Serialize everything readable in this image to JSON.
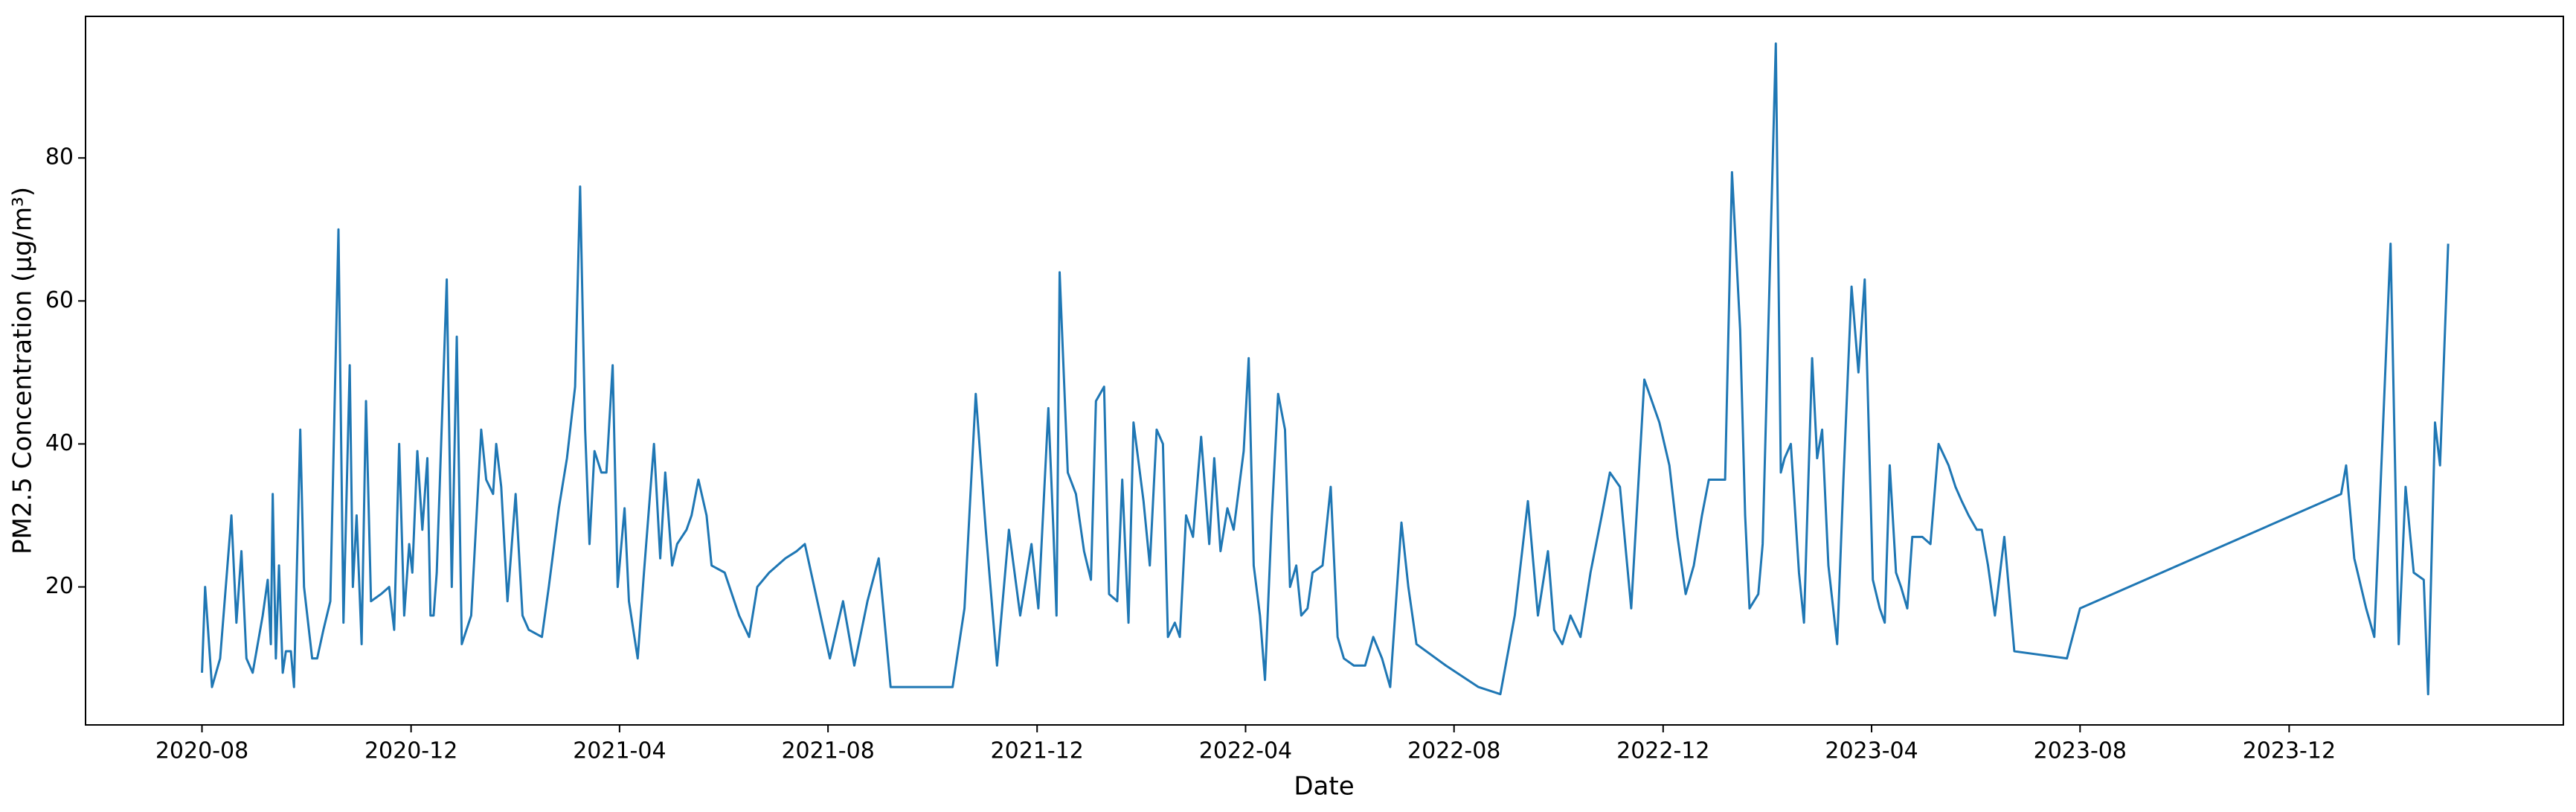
{
  "chart_data": {
    "type": "line",
    "xlabel": "Date",
    "ylabel": "PM2.5 Concentration (µg/m³)",
    "color": "#1f77b4",
    "grid": false,
    "xlim": [
      2020.397,
      2024.355
    ],
    "ylim": [
      0.7,
      99.8
    ],
    "yticks": [
      20,
      40,
      60,
      80
    ],
    "xticks": [
      {
        "value": 2020.583,
        "label": "2020-08"
      },
      {
        "value": 2020.917,
        "label": "2020-12"
      },
      {
        "value": 2021.25,
        "label": "2021-04"
      },
      {
        "value": 2021.583,
        "label": "2021-08"
      },
      {
        "value": 2021.917,
        "label": "2021-12"
      },
      {
        "value": 2022.25,
        "label": "2022-04"
      },
      {
        "value": 2022.583,
        "label": "2022-08"
      },
      {
        "value": 2022.917,
        "label": "2022-12"
      },
      {
        "value": 2023.25,
        "label": "2023-04"
      },
      {
        "value": 2023.583,
        "label": "2023-08"
      },
      {
        "value": 2023.917,
        "label": "2023-12"
      }
    ],
    "x": [
      2020.583,
      2020.588,
      2020.599,
      2020.612,
      2020.63,
      2020.638,
      2020.646,
      2020.654,
      2020.664,
      2020.68,
      2020.688,
      2020.693,
      2020.696,
      2020.701,
      2020.706,
      2020.712,
      2020.717,
      2020.725,
      2020.73,
      2020.74,
      2020.746,
      2020.759,
      2020.767,
      2020.777,
      2020.788,
      2020.801,
      2020.809,
      2020.819,
      2020.824,
      2020.83,
      2020.838,
      2020.845,
      2020.853,
      2020.869,
      2020.882,
      2020.89,
      2020.898,
      2020.906,
      2020.914,
      2020.919,
      2020.927,
      2020.935,
      2020.943,
      2020.948,
      2020.953,
      2020.958,
      2020.974,
      2020.982,
      2020.99,
      2020.998,
      2021.013,
      2021.029,
      2021.037,
      2021.048,
      2021.053,
      2021.061,
      2021.071,
      2021.084,
      2021.095,
      2021.105,
      2021.126,
      2021.137,
      2021.153,
      2021.166,
      2021.179,
      2021.187,
      2021.195,
      2021.202,
      2021.21,
      2021.221,
      2021.229,
      2021.239,
      2021.247,
      2021.258,
      2021.265,
      2021.279,
      2021.289,
      2021.305,
      2021.315,
      2021.323,
      2021.334,
      2021.342,
      2021.357,
      2021.365,
      2021.376,
      2021.389,
      2021.397,
      2021.418,
      2021.441,
      2021.457,
      2021.47,
      2021.489,
      2021.515,
      2021.533,
      2021.546,
      2021.586,
      2021.607,
      2021.625,
      2021.646,
      2021.664,
      2021.683,
      2021.782,
      2021.801,
      2021.819,
      2021.835,
      2021.853,
      2021.872,
      2021.89,
      2021.908,
      2021.919,
      2021.935,
      2021.943,
      2021.948,
      2021.953,
      2021.966,
      2021.979,
      2021.992,
      2022.003,
      2022.011,
      2022.024,
      2022.032,
      2022.045,
      2022.053,
      2022.063,
      2022.071,
      2022.087,
      2022.097,
      2022.108,
      2022.118,
      2022.126,
      2022.137,
      2022.145,
      2022.155,
      2022.166,
      2022.179,
      2022.192,
      2022.2,
      2022.21,
      2022.221,
      2022.231,
      2022.247,
      2022.255,
      2022.263,
      2022.273,
      2022.281,
      2022.292,
      2022.302,
      2022.313,
      2022.321,
      2022.331,
      2022.339,
      2022.349,
      2022.357,
      2022.373,
      2022.386,
      2022.397,
      2022.407,
      2022.423,
      2022.441,
      2022.454,
      2022.468,
      2022.481,
      2022.499,
      2022.51,
      2022.523,
      2022.57,
      2022.622,
      2022.657,
      2022.68,
      2022.701,
      2022.717,
      2022.733,
      2022.743,
      2022.756,
      2022.769,
      2022.785,
      2022.801,
      2022.819,
      2022.832,
      2022.848,
      2022.866,
      2022.887,
      2022.911,
      2022.927,
      2022.94,
      2022.953,
      2022.966,
      2022.979,
      2022.99,
      2023.008,
      2023.016,
      2023.027,
      2023.04,
      2023.048,
      2023.055,
      2023.069,
      2023.076,
      2023.097,
      2023.105,
      2023.111,
      2023.121,
      2023.134,
      2023.142,
      2023.155,
      2023.163,
      2023.171,
      2023.181,
      2023.195,
      2023.205,
      2023.218,
      2023.229,
      2023.239,
      2023.252,
      2023.263,
      2023.271,
      2023.279,
      2023.289,
      2023.297,
      2023.307,
      2023.315,
      2023.331,
      2023.344,
      2023.357,
      2023.373,
      2023.384,
      2023.394,
      2023.405,
      2023.418,
      2023.426,
      2023.436,
      2023.447,
      2023.462,
      2023.478,
      2023.562,
      2023.583,
      2024.0,
      2024.008,
      2024.021,
      2024.04,
      2024.053,
      2024.079,
      2024.092,
      2024.103,
      2024.116,
      2024.132,
      2024.139,
      2024.15,
      2024.158,
      2024.171
    ],
    "values": [
      8,
      20,
      6,
      10,
      30,
      15,
      25,
      10,
      8,
      16,
      21,
      12,
      33,
      10,
      23,
      8,
      11,
      11,
      6,
      42,
      20,
      10,
      10,
      14,
      18,
      70,
      15,
      51,
      20,
      30,
      12,
      46,
      18,
      19,
      20,
      14,
      40,
      16,
      26,
      22,
      39,
      28,
      38,
      16,
      16,
      22,
      63,
      20,
      55,
      12,
      16,
      42,
      35,
      33,
      40,
      34,
      18,
      33,
      16,
      14,
      13,
      20,
      31,
      38,
      48,
      76,
      42,
      26,
      39,
      36,
      36,
      51,
      20,
      31,
      18,
      10,
      22,
      40,
      24,
      36,
      23,
      26,
      28,
      30,
      35,
      30,
      23,
      22,
      16,
      13,
      20,
      22,
      24,
      25,
      26,
      10,
      18,
      9,
      18,
      24,
      6,
      6,
      17,
      47,
      28,
      9,
      28,
      16,
      26,
      17,
      45,
      28,
      16,
      64,
      36,
      33,
      25,
      21,
      46,
      48,
      19,
      18,
      35,
      15,
      43,
      32,
      23,
      42,
      40,
      13,
      15,
      13,
      30,
      27,
      41,
      26,
      38,
      25,
      31,
      28,
      39,
      52,
      23,
      16,
      7,
      30,
      47,
      42,
      20,
      23,
      16,
      17,
      22,
      23,
      34,
      13,
      10,
      9,
      9,
      13,
      10,
      6,
      29,
      20,
      12,
      9,
      6,
      5,
      16,
      32,
      16,
      25,
      14,
      12,
      16,
      13,
      22,
      30,
      36,
      34,
      17,
      49,
      43,
      37,
      27,
      19,
      23,
      30,
      35,
      35,
      35,
      78,
      56,
      30,
      17,
      19,
      26,
      96,
      36,
      38,
      40,
      22,
      15,
      52,
      38,
      42,
      23,
      12,
      35,
      62,
      50,
      63,
      21,
      17,
      15,
      37,
      22,
      20,
      17,
      27,
      27,
      26,
      40,
      37,
      34,
      32,
      30,
      28,
      28,
      23,
      16,
      27,
      11,
      10,
      17,
      33,
      37,
      24,
      17,
      13,
      68,
      12,
      34,
      22,
      21,
      5,
      43,
      37,
      68
    ]
  }
}
